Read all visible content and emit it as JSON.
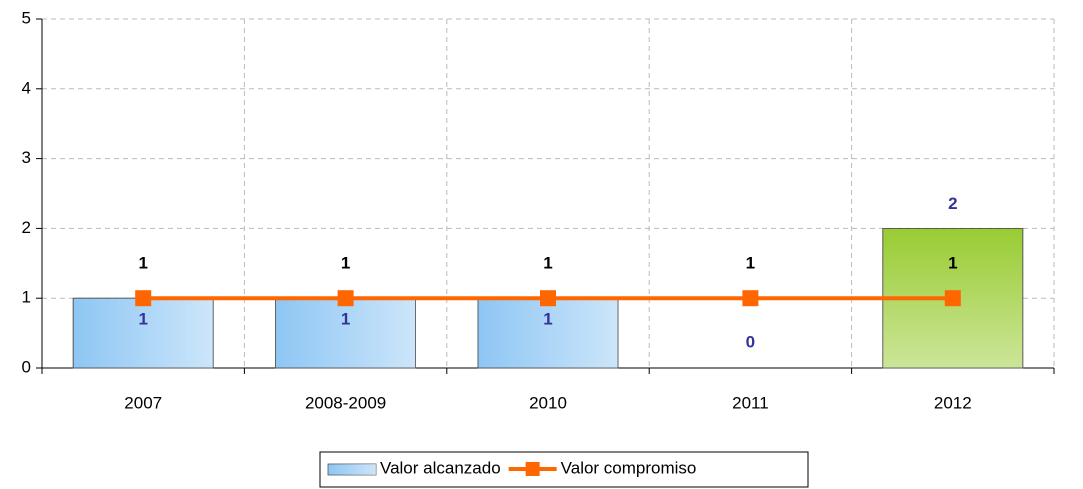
{
  "chart_data": {
    "type": "bar",
    "categories": [
      "2007",
      "2008-2009",
      "2010",
      "2011",
      "2012"
    ],
    "series": [
      {
        "name": "Valor alcanzado",
        "type": "bar",
        "color": "#8ec6f4",
        "colors": [
          "#8ec6f4",
          "#8ec6f4",
          "#8ec6f4",
          "#8ec6f4",
          "#99cc33"
        ],
        "label_color": "#333399",
        "values": [
          1,
          1,
          1,
          0,
          2
        ]
      },
      {
        "name": "Valor compromiso",
        "type": "line",
        "color": "#ff6600",
        "label_color": "#000000",
        "values": [
          1,
          1,
          1,
          1,
          1
        ]
      }
    ],
    "ylim": [
      0,
      5
    ],
    "yticks": [
      0,
      1,
      2,
      3,
      4,
      5
    ],
    "grid": true,
    "legend": "bottom"
  }
}
